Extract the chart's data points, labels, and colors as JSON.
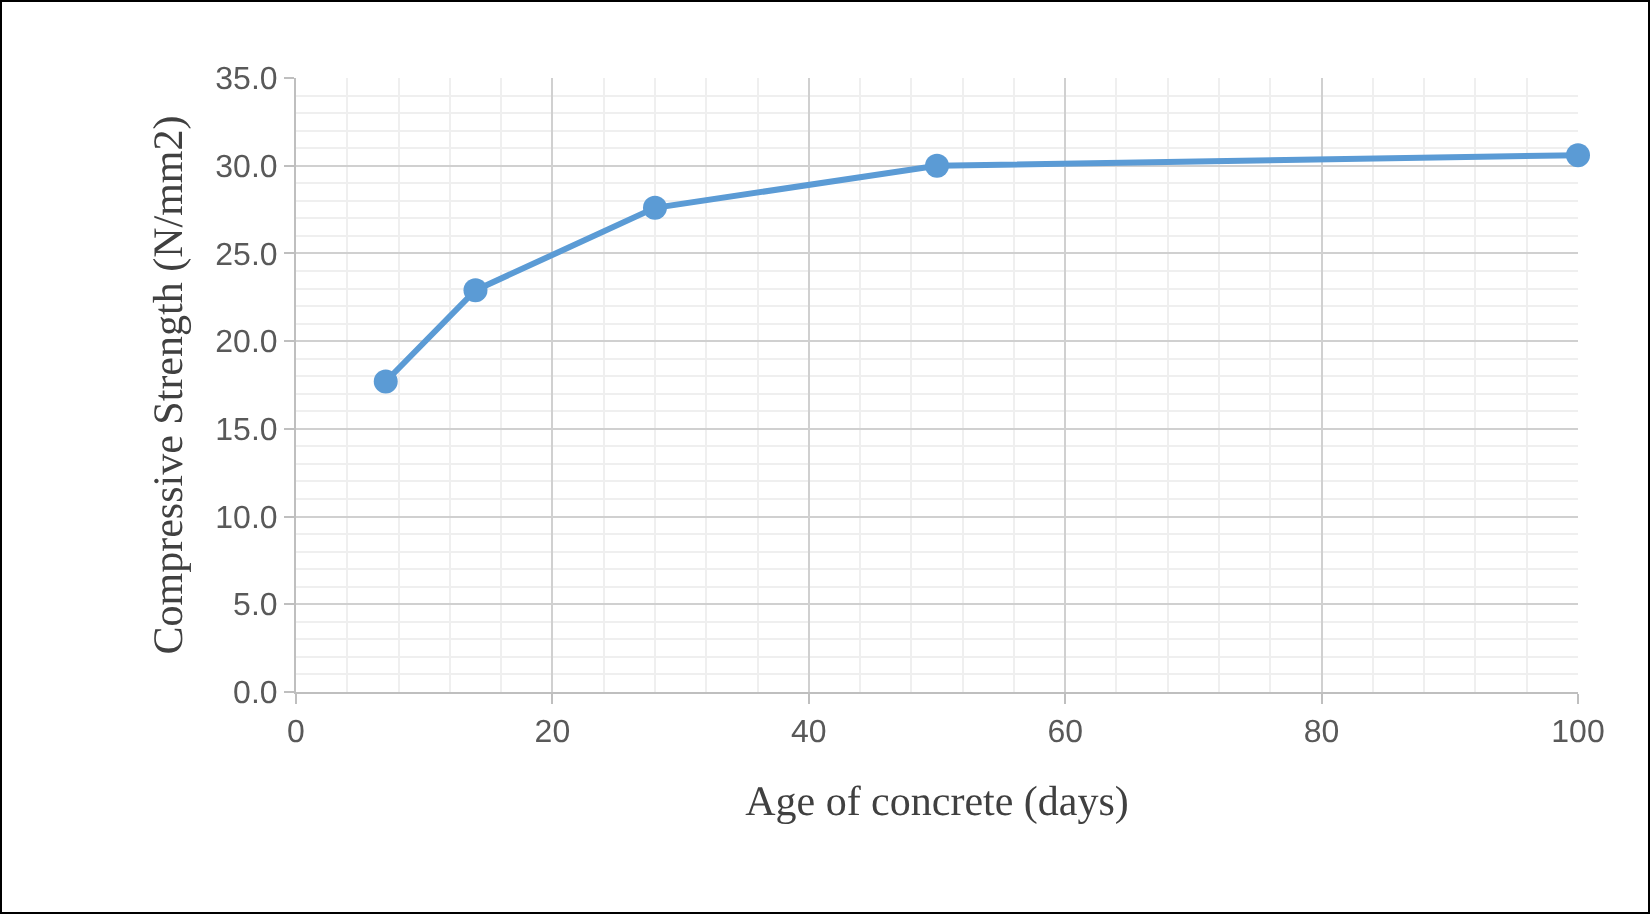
{
  "chart_data": {
    "type": "line",
    "xlabel": "Age of concrete (days)",
    "ylabel": "Compressive Strength (N/mm2)",
    "x": [
      7,
      14,
      28,
      50,
      100
    ],
    "series": [
      {
        "color": "#5b9bd5",
        "values": [
          17.7,
          22.9,
          27.6,
          30.0,
          30.6
        ]
      }
    ],
    "xlim": [
      0,
      100
    ],
    "xticks": [
      0,
      20,
      40,
      60,
      80,
      100
    ],
    "ylim": [
      0,
      35
    ],
    "yticks": [
      {
        "value": 0,
        "label": "0.0"
      },
      {
        "value": 5,
        "label": "5.0"
      },
      {
        "value": 10,
        "label": "10.0"
      },
      {
        "value": 15,
        "label": "15.0"
      },
      {
        "value": 20,
        "label": "20.0"
      },
      {
        "value": 25,
        "label": "25.0"
      },
      {
        "value": 30,
        "label": "30.0"
      },
      {
        "value": 35,
        "label": "35.0"
      }
    ],
    "grid": true,
    "marker": "circle",
    "line_style": "solid",
    "legend": false
  }
}
